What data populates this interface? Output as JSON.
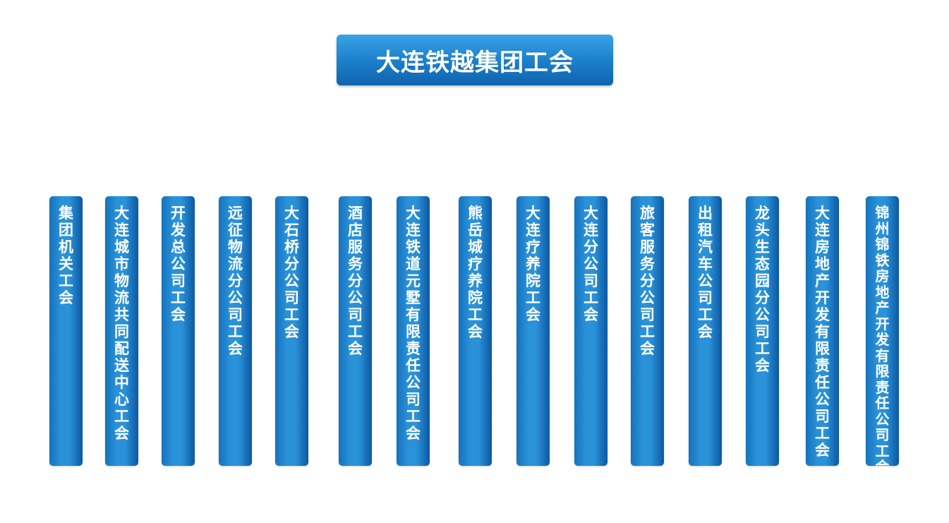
{
  "root": {
    "label": "大连铁越集团工会"
  },
  "units": [
    {
      "label": "集团机关工会"
    },
    {
      "label": "大连城市物流共同配送中心工会"
    },
    {
      "label": "开发总公司工会"
    },
    {
      "label": "远征物流分公司工会"
    },
    {
      "label": "大石桥分公司工会"
    },
    {
      "label": "酒店服务分公司工会"
    },
    {
      "label": "大连铁道元墅有限责任公司工会"
    },
    {
      "label": "熊岳城疗养院工会"
    },
    {
      "label": "大连疗养院工会"
    },
    {
      "label": "大连分公司工会"
    },
    {
      "label": "旅客服务分公司工会"
    },
    {
      "label": "出租汽车公司工会"
    },
    {
      "label": "龙头生态园分公司工会"
    },
    {
      "label": "大连房地产开发有限责任公司工会"
    },
    {
      "label": "锦州锦铁房地产开发有限责任公司工会"
    }
  ]
}
